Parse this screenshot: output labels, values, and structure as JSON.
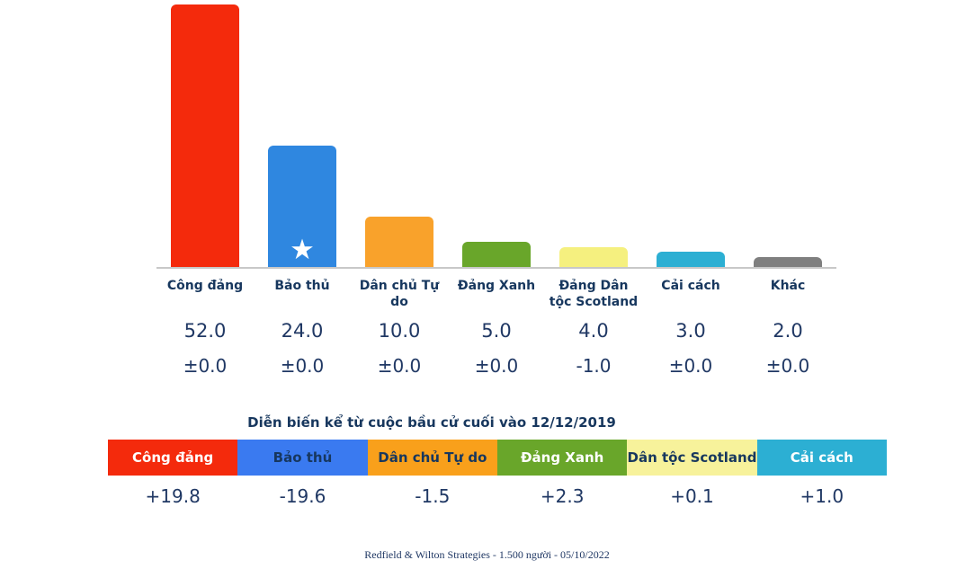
{
  "chart_data": {
    "type": "bar",
    "categories": [
      "Công đảng",
      "Bảo thủ",
      "Dân chủ Tự do",
      "Đảng Xanh",
      "Đảng Dân tộc Scotland",
      "Cải cách",
      "Khác"
    ],
    "values": [
      52.0,
      24.0,
      10.0,
      5.0,
      4.0,
      3.0,
      2.0
    ],
    "value_labels": [
      "52.0",
      "24.0",
      "10.0",
      "5.0",
      "4.0",
      "3.0",
      "2.0"
    ],
    "change_labels": [
      "±0.0",
      "±0.0",
      "±0.0",
      "±0.0",
      "-1.0",
      "±0.0",
      "±0.0"
    ],
    "bar_colors": [
      "#f42a0c",
      "#2f87e0",
      "#f9a22b",
      "#69a62a",
      "#f5f07f",
      "#2cafd3",
      "#7f7f7f"
    ],
    "ylim": [
      0,
      52
    ],
    "starred_index": 1,
    "grid": false,
    "legend": false,
    "star_icon": "★"
  },
  "since_election": {
    "title": "Diễn biến kể từ cuộc bầu cử cuối vào 12/12/2019",
    "items": [
      {
        "label": "Công đảng",
        "value": "+19.8",
        "bg": "#f42a0c",
        "fg": "#ffffff"
      },
      {
        "label": "Bảo thủ",
        "value": "-19.6",
        "bg": "#3a7af0",
        "fg": "#17375e"
      },
      {
        "label": "Dân chủ Tự do",
        "value": "-1.5",
        "bg": "#f9a01b",
        "fg": "#17375e"
      },
      {
        "label": "Đảng Xanh",
        "value": "+2.3",
        "bg": "#69a62a",
        "fg": "#ffffff"
      },
      {
        "label": "Dân tộc Scotland",
        "value": "+0.1",
        "bg": "#f7f29b",
        "fg": "#17375e"
      },
      {
        "label": "Cải cách",
        "value": "+1.0",
        "bg": "#2cafd3",
        "fg": "#ffffff"
      }
    ]
  },
  "footer": {
    "source_line": "Redfield & Wilton Strategies - 1.500 người - 05/10/2022"
  }
}
